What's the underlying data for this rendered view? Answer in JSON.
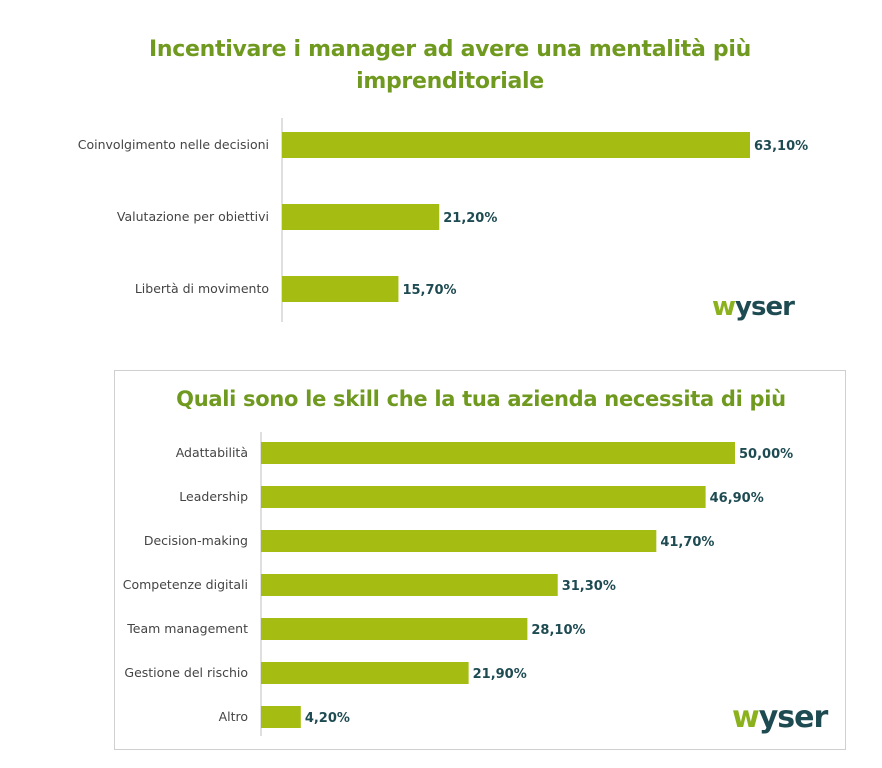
{
  "colors": {
    "bar": "#a5bd12",
    "title": "#6f9a1f",
    "value": "#1e4b52",
    "axis": "#bfbfbf",
    "logo_w": "#8bb21c",
    "logo_text": "#1e4b52"
  },
  "logo": {
    "w": "w",
    "rest": "yser"
  },
  "chart_data": [
    {
      "type": "bar",
      "orientation": "horizontal",
      "title": "Incentivare i manager ad avere una mentalità più imprenditoriale",
      "categories": [
        "Coinvolgimento nelle decisioni",
        "Valutazione per obiettivi",
        "Libertà di movimento"
      ],
      "values": [
        63.1,
        21.2,
        15.7
      ],
      "value_labels": [
        "63,10%",
        "21,20%",
        "15,70%"
      ],
      "xlim": [
        0,
        63.1
      ]
    },
    {
      "type": "bar",
      "orientation": "horizontal",
      "title": "Quali sono le skill che la tua azienda necessita di più",
      "categories": [
        "Adattabilità",
        "Leadership",
        "Decision-making",
        "Competenze digitali",
        "Team management",
        "Gestione del rischio",
        "Altro"
      ],
      "values": [
        50.0,
        46.9,
        41.7,
        31.3,
        28.1,
        21.9,
        4.2
      ],
      "value_labels": [
        "50,00%",
        "46,90%",
        "41,70%",
        "31,30%",
        "28,10%",
        "21,90%",
        "4,20%"
      ],
      "xlim": [
        0,
        50.0
      ]
    }
  ]
}
